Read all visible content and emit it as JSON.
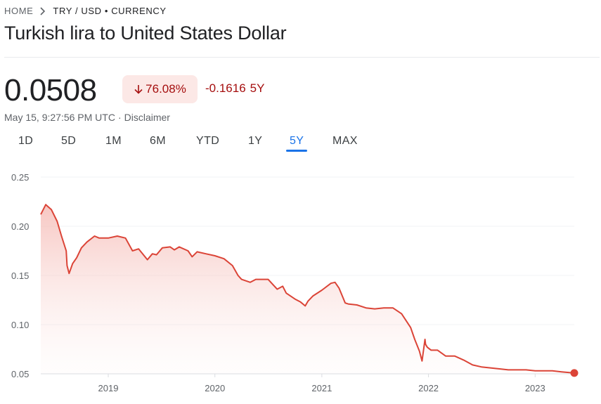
{
  "breadcrumb": {
    "home": "HOME",
    "current": "TRY / USD • CURRENCY"
  },
  "title": "Turkish lira to United States Dollar",
  "quote": {
    "price": "0.0508",
    "percent_change": "76.08%",
    "percent_direction": "down",
    "abs_change": "-0.1616",
    "period": "5Y",
    "timestamp": "May 15, 9:27:56 PM UTC",
    "separator": "·",
    "disclaimer": "Disclaimer"
  },
  "tabs": [
    "1D",
    "5D",
    "1M",
    "6M",
    "YTD",
    "1Y",
    "5Y",
    "MAX"
  ],
  "active_tab": "5Y",
  "colors": {
    "line": "#db4437",
    "negative_text": "#a50e0e",
    "negative_bg": "#fce8e6",
    "accent": "#1a73e8",
    "grid": "#f1f3f4"
  },
  "chart_data": {
    "type": "area",
    "series": [
      {
        "x": [
          "2018-05-15",
          "2018-06-01",
          "2018-06-20",
          "2018-07-10",
          "2018-07-25",
          "2018-08-10",
          "2018-08-13",
          "2018-08-20",
          "2018-09-01",
          "2018-09-15",
          "2018-10-01",
          "2018-10-20",
          "2018-11-15",
          "2018-12-01",
          "2019-01-01",
          "2019-02-01",
          "2019-03-01",
          "2019-03-25",
          "2019-04-15",
          "2019-05-15",
          "2019-06-01",
          "2019-06-15",
          "2019-07-05",
          "2019-08-01",
          "2019-08-15",
          "2019-09-01",
          "2019-10-01",
          "2019-10-15",
          "2019-11-01",
          "2019-12-01",
          "2020-01-01",
          "2020-02-01",
          "2020-03-01",
          "2020-03-20",
          "2020-04-01",
          "2020-05-01",
          "2020-05-20",
          "2020-06-01",
          "2020-07-01",
          "2020-08-01",
          "2020-08-20",
          "2020-09-01",
          "2020-10-01",
          "2020-10-20",
          "2020-11-05",
          "2020-11-15",
          "2020-12-01",
          "2021-01-01",
          "2021-02-01",
          "2021-02-15",
          "2021-03-01",
          "2021-03-22",
          "2021-04-01",
          "2021-05-01",
          "2021-06-01",
          "2021-07-01",
          "2021-08-01",
          "2021-09-01",
          "2021-10-01",
          "2021-11-01",
          "2021-11-15",
          "2021-12-01",
          "2021-12-10",
          "2021-12-20",
          "2021-12-22",
          "2021-12-28",
          "2022-01-10",
          "2022-02-01",
          "2022-03-01",
          "2022-04-01",
          "2022-05-01",
          "2022-06-01",
          "2022-07-01",
          "2022-08-01",
          "2022-09-01",
          "2022-10-01",
          "2022-11-01",
          "2022-12-01",
          "2023-01-01",
          "2023-02-01",
          "2023-03-01",
          "2023-04-01",
          "2023-05-15"
        ],
        "values": [
          0.212,
          0.222,
          0.217,
          0.205,
          0.19,
          0.175,
          0.16,
          0.152,
          0.162,
          0.168,
          0.178,
          0.184,
          0.19,
          0.188,
          0.188,
          0.19,
          0.188,
          0.175,
          0.177,
          0.166,
          0.172,
          0.171,
          0.178,
          0.179,
          0.176,
          0.179,
          0.175,
          0.169,
          0.174,
          0.172,
          0.17,
          0.167,
          0.16,
          0.15,
          0.146,
          0.143,
          0.146,
          0.146,
          0.146,
          0.136,
          0.139,
          0.132,
          0.126,
          0.123,
          0.119,
          0.124,
          0.129,
          0.135,
          0.142,
          0.143,
          0.137,
          0.122,
          0.121,
          0.12,
          0.117,
          0.116,
          0.117,
          0.117,
          0.111,
          0.097,
          0.085,
          0.073,
          0.063,
          0.085,
          0.08,
          0.077,
          0.074,
          0.074,
          0.068,
          0.068,
          0.064,
          0.059,
          0.057,
          0.056,
          0.055,
          0.054,
          0.054,
          0.054,
          0.053,
          0.053,
          0.053,
          0.052,
          0.0508
        ]
      }
    ],
    "x_tick_labels": [
      "2019",
      "2020",
      "2021",
      "2022",
      "2023"
    ],
    "y_ticks": [
      0.05,
      0.1,
      0.15,
      0.2,
      0.25
    ],
    "y_tick_labels": [
      "0.05",
      "0.10",
      "0.15",
      "0.20",
      "0.25"
    ],
    "xlim": [
      "2018-05-15",
      "2023-05-15"
    ],
    "ylim": [
      0.05,
      0.25
    ],
    "grid": true,
    "legend": "none"
  }
}
